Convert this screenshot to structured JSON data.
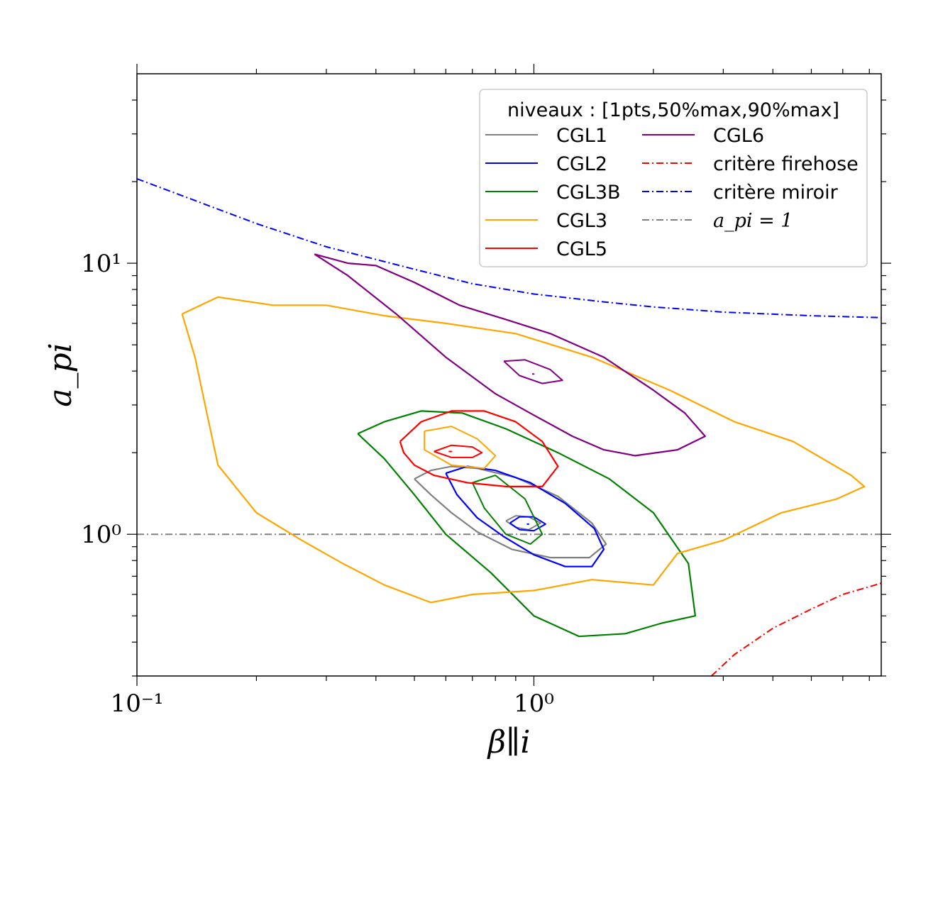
{
  "chart_data": {
    "type": "line",
    "xscale": "log",
    "yscale": "log",
    "xlim": [
      0.1,
      7.5
    ],
    "ylim": [
      0.3,
      50
    ],
    "xlabel": "β∥i",
    "ylabel": "a_pi",
    "x_tick_labels": [
      "10⁻¹",
      "10⁰"
    ],
    "y_tick_labels": [
      "10⁰",
      "10¹"
    ],
    "grid": false,
    "legend": {
      "placement": "top-right",
      "title": "niveaux : [1pts,50%max,90%max]",
      "entries": [
        {
          "label": "CGL1",
          "color": "#808080",
          "style": "solid"
        },
        {
          "label": "CGL2",
          "color": "#0000ff",
          "style": "solid"
        },
        {
          "label": "CGL3B",
          "color": "#008000",
          "style": "solid"
        },
        {
          "label": "CGL3",
          "color": "#ffa500",
          "style": "solid"
        },
        {
          "label": "CGL5",
          "color": "#ff0000",
          "style": "solid"
        },
        {
          "label": "CGL6",
          "color": "#800080",
          "style": "solid"
        },
        {
          "label": "critère firehose",
          "color": "#ff0000",
          "style": "dashdot"
        },
        {
          "label": "critère miroir",
          "color": "#0000ff",
          "style": "dashdot"
        },
        {
          "label": "a_pi = 1",
          "color": "#808080",
          "style": "dashdot"
        }
      ]
    },
    "reference_curves": [
      {
        "name": "critère miroir",
        "x": [
          0.1,
          0.2,
          0.3,
          0.5,
          0.7,
          1.0,
          1.5,
          2.0,
          3.0,
          5.0,
          7.5
        ],
        "y": [
          20.5,
          14.0,
          11.5,
          9.5,
          8.4,
          7.7,
          7.2,
          6.9,
          6.6,
          6.4,
          6.3
        ]
      },
      {
        "name": "critère firehose",
        "x": [
          2.8,
          3.2,
          4.0,
          5.0,
          6.0,
          7.5
        ],
        "y": [
          0.3,
          0.36,
          0.45,
          0.53,
          0.6,
          0.66
        ]
      },
      {
        "name": "a_pi = 1",
        "x": [
          0.1,
          7.5
        ],
        "y": [
          1.0,
          1.0
        ]
      }
    ],
    "series": [
      {
        "name": "CGL1",
        "color": "#808080",
        "contours": [
          {
            "level": "1pts",
            "x": [
              0.5,
              0.55,
              0.62,
              0.72,
              0.9,
              1.15,
              1.4,
              1.52,
              1.38,
              1.1,
              0.88,
              0.72,
              0.62,
              0.55,
              0.5
            ],
            "y": [
              1.6,
              1.72,
              1.78,
              1.75,
              1.62,
              1.38,
              1.1,
              0.92,
              0.82,
              0.82,
              0.88,
              1.02,
              1.2,
              1.4,
              1.6
            ]
          },
          {
            "level": "50%max",
            "x": [
              0.85,
              0.9,
              0.97,
              1.04,
              0.97,
              0.9,
              0.85
            ],
            "y": [
              1.12,
              1.17,
              1.16,
              1.1,
              1.04,
              1.06,
              1.12
            ]
          }
        ]
      },
      {
        "name": "CGL2",
        "color": "#0000ff",
        "contours": [
          {
            "level": "1pts",
            "x": [
              0.6,
              0.68,
              0.8,
              0.98,
              1.2,
              1.42,
              1.5,
              1.4,
              1.2,
              1.0,
              0.84,
              0.72,
              0.64,
              0.6
            ],
            "y": [
              1.68,
              1.78,
              1.72,
              1.55,
              1.3,
              1.05,
              0.88,
              0.76,
              0.76,
              0.84,
              0.98,
              1.15,
              1.4,
              1.68
            ]
          },
          {
            "level": "50%max",
            "x": [
              0.87,
              0.92,
              1.0,
              1.07,
              1.0,
              0.92,
              0.87
            ],
            "y": [
              1.1,
              1.16,
              1.16,
              1.09,
              1.03,
              1.04,
              1.1
            ]
          },
          {
            "level": "90%max",
            "x": [
              0.96,
              0.97,
              0.96
            ],
            "y": [
              1.09,
              1.09,
              1.09
            ]
          }
        ]
      },
      {
        "name": "CGL3B",
        "color": "#008000",
        "contours": [
          {
            "level": "1pts",
            "x": [
              0.36,
              0.42,
              0.52,
              0.66,
              0.85,
              1.15,
              1.55,
              2.0,
              2.45,
              2.55,
              2.1,
              1.7,
              1.3,
              1.0,
              0.78,
              0.6,
              0.5,
              0.42,
              0.36
            ],
            "y": [
              2.35,
              2.6,
              2.85,
              2.8,
              2.45,
              2.0,
              1.6,
              1.2,
              0.78,
              0.5,
              0.47,
              0.43,
              0.42,
              0.5,
              0.72,
              1.0,
              1.4,
              1.9,
              2.35
            ]
          },
          {
            "level": "50%max",
            "x": [
              0.7,
              0.8,
              0.95,
              1.05,
              0.98,
              0.85,
              0.75,
              0.7
            ],
            "y": [
              1.55,
              1.65,
              1.35,
              1.0,
              0.92,
              1.0,
              1.25,
              1.55
            ]
          }
        ]
      },
      {
        "name": "CGL3",
        "color": "#ffa500",
        "contours": [
          {
            "level": "1pts",
            "x": [
              0.13,
              0.16,
              0.22,
              0.3,
              0.42,
              0.6,
              0.9,
              1.4,
              2.2,
              3.2,
              4.5,
              6.3,
              6.8,
              5.8,
              4.2,
              3.0,
              2.3,
              2.0,
              1.4,
              1.0,
              0.7,
              0.55,
              0.42,
              0.33,
              0.26,
              0.2,
              0.16,
              0.15,
              0.14,
              0.13
            ],
            "y": [
              6.5,
              7.5,
              7.0,
              7.0,
              6.4,
              6.0,
              5.5,
              4.5,
              3.4,
              2.6,
              2.2,
              1.65,
              1.5,
              1.35,
              1.2,
              0.95,
              0.85,
              0.65,
              0.68,
              0.62,
              0.6,
              0.56,
              0.65,
              0.78,
              0.95,
              1.2,
              1.8,
              2.8,
              4.5,
              6.5
            ]
          },
          {
            "level": "50%max",
            "x": [
              0.53,
              0.62,
              0.72,
              0.8,
              0.75,
              0.62,
              0.53,
              0.53
            ],
            "y": [
              2.4,
              2.5,
              2.25,
              1.95,
              1.75,
              1.8,
              2.05,
              2.4
            ]
          }
        ]
      },
      {
        "name": "CGL5",
        "color": "#ff0000",
        "contours": [
          {
            "level": "1pts",
            "x": [
              0.46,
              0.52,
              0.62,
              0.75,
              0.9,
              1.05,
              1.15,
              1.05,
              0.85,
              0.68,
              0.56,
              0.5,
              0.47,
              0.46
            ],
            "y": [
              2.2,
              2.6,
              2.85,
              2.85,
              2.6,
              2.2,
              1.78,
              1.5,
              1.5,
              1.55,
              1.65,
              1.8,
              2.0,
              2.2
            ]
          },
          {
            "level": "50%max",
            "x": [
              0.56,
              0.62,
              0.7,
              0.74,
              0.7,
              0.62,
              0.56
            ],
            "y": [
              2.02,
              2.13,
              2.1,
              2.0,
              1.92,
              1.92,
              2.02
            ]
          },
          {
            "level": "90%max",
            "x": [
              0.61,
              0.62,
              0.61
            ],
            "y": [
              2.02,
              2.02,
              2.02
            ]
          }
        ]
      },
      {
        "name": "CGL6",
        "color": "#800080",
        "contours": [
          {
            "level": "1pts",
            "x": [
              0.28,
              0.34,
              0.4,
              0.5,
              0.65,
              0.85,
              1.1,
              1.5,
              2.0,
              2.4,
              2.7,
              2.3,
              1.8,
              1.5,
              1.25,
              1.0,
              0.8,
              0.6,
              0.45,
              0.34,
              0.28
            ],
            "y": [
              10.8,
              10.0,
              9.8,
              8.5,
              7.0,
              6.2,
              5.5,
              4.5,
              3.4,
              2.8,
              2.3,
              2.05,
              1.95,
              2.05,
              2.3,
              2.75,
              3.3,
              4.5,
              6.5,
              9.0,
              10.8
            ]
          },
          {
            "level": "50%max",
            "x": [
              0.84,
              0.95,
              1.1,
              1.18,
              1.05,
              0.92,
              0.84
            ],
            "y": [
              4.35,
              4.4,
              4.05,
              3.7,
              3.6,
              3.85,
              4.35
            ]
          },
          {
            "level": "90%max",
            "x": [
              0.99,
              1.0,
              0.99
            ],
            "y": [
              3.9,
              3.9,
              3.9
            ]
          }
        ]
      }
    ]
  }
}
